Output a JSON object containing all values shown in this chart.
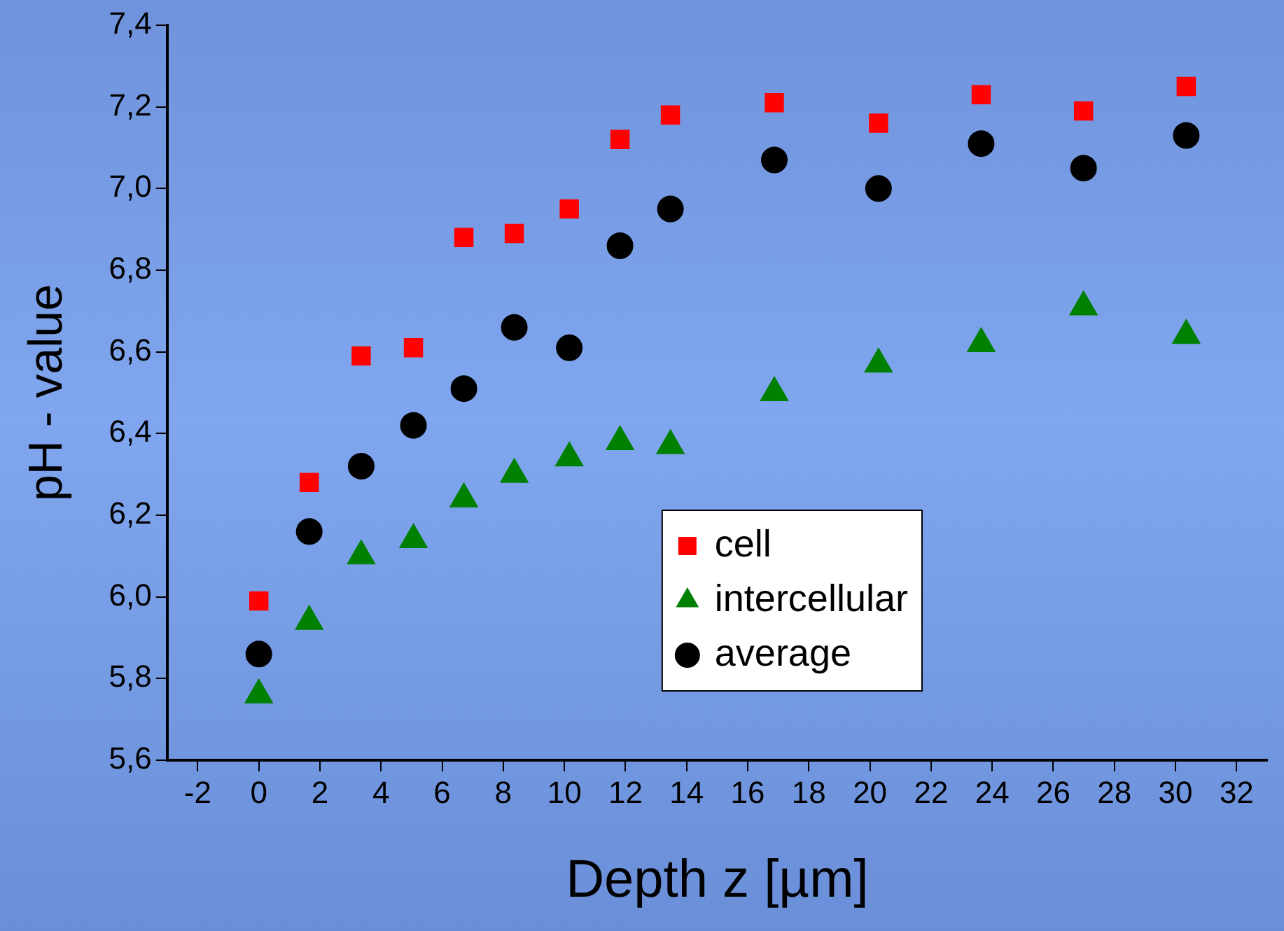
{
  "chart_data": {
    "type": "scatter",
    "xlabel": "Depth z [µm]",
    "ylabel": "pH - value",
    "xlim": [
      -3,
      33
    ],
    "xticks": [
      -2,
      0,
      2,
      4,
      6,
      8,
      10,
      12,
      14,
      16,
      18,
      20,
      22,
      24,
      26,
      28,
      30,
      32
    ],
    "ylim": [
      5.6,
      7.4
    ],
    "yticks": [
      {
        "value": 5.6,
        "label": "5,6"
      },
      {
        "value": 5.8,
        "label": "5,8"
      },
      {
        "value": 6.0,
        "label": "6,0"
      },
      {
        "value": 6.2,
        "label": "6,2"
      },
      {
        "value": 6.4,
        "label": "6,4"
      },
      {
        "value": 6.6,
        "label": "6,6"
      },
      {
        "value": 6.8,
        "label": "6,8"
      },
      {
        "value": 7.0,
        "label": "7,0"
      },
      {
        "value": 7.2,
        "label": "7,2"
      },
      {
        "value": 7.4,
        "label": "7,4"
      }
    ],
    "x": [
      0,
      1.65,
      3.35,
      5.06,
      6.71,
      8.36,
      10.16,
      11.82,
      13.47,
      16.87,
      20.28,
      23.64,
      26.99,
      30.35
    ],
    "grid": false,
    "legend": "bottom right",
    "series": [
      {
        "name": "cell",
        "color": "#ff0000",
        "marker": "square",
        "values": [
          5.99,
          6.28,
          6.59,
          6.61,
          6.88,
          6.89,
          6.95,
          7.12,
          7.18,
          7.21,
          7.16,
          7.23,
          7.19,
          7.25
        ]
      },
      {
        "name": "intercellular",
        "color": "#008000",
        "marker": "triangle",
        "values": [
          5.76,
          5.94,
          6.1,
          6.14,
          6.24,
          6.3,
          6.34,
          6.38,
          6.37,
          6.5,
          6.57,
          6.62,
          6.71,
          6.64
        ]
      },
      {
        "name": "average",
        "color": "#000000",
        "marker": "circle",
        "values": [
          5.86,
          6.16,
          6.32,
          6.42,
          6.51,
          6.66,
          6.61,
          6.86,
          6.95,
          7.07,
          7.0,
          7.11,
          7.05,
          7.13
        ]
      }
    ]
  }
}
